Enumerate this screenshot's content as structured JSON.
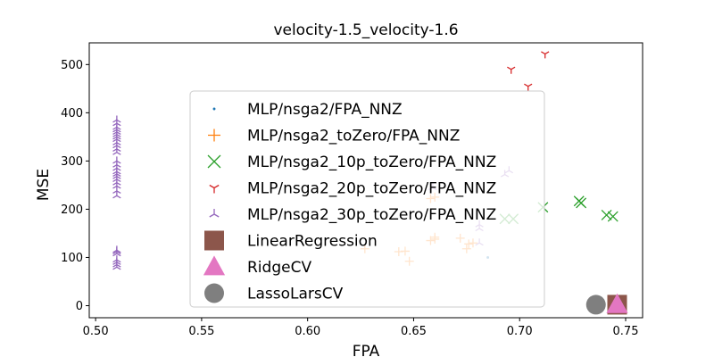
{
  "chart_data": {
    "type": "scatter",
    "title": "velocity-1.5_velocity-1.6",
    "xlabel": "FPA",
    "ylabel": "MSE",
    "xlim": [
      0.497,
      0.758
    ],
    "ylim": [
      -25,
      545
    ],
    "xticks": [
      0.5,
      0.55,
      0.6,
      0.65,
      0.7,
      0.75
    ],
    "xtick_labels": [
      "0.50",
      "0.55",
      "0.60",
      "0.65",
      "0.70",
      "0.75"
    ],
    "yticks": [
      0,
      100,
      200,
      300,
      400,
      500
    ],
    "ytick_labels": [
      "0",
      "100",
      "200",
      "300",
      "400",
      "500"
    ],
    "grid": false,
    "legend_position": "center",
    "series": [
      {
        "name": "MLP/nsga2/FPA_NNZ",
        "marker": "dot",
        "color": "#1f77b4",
        "points": [
          [
            0.685,
            100
          ]
        ]
      },
      {
        "name": "MLP/nsga2_toZero/FPA_NNZ",
        "marker": "plus",
        "color": "#ff7f0e",
        "points": [
          [
            0.627,
            118
          ],
          [
            0.643,
            112
          ],
          [
            0.646,
            113
          ],
          [
            0.648,
            92
          ],
          [
            0.658,
            135
          ],
          [
            0.66,
            142
          ],
          [
            0.66,
            138
          ],
          [
            0.672,
            140
          ],
          [
            0.675,
            118
          ],
          [
            0.676,
            128
          ],
          [
            0.678,
            130
          ],
          [
            0.658,
            222
          ],
          [
            0.66,
            225
          ]
        ]
      },
      {
        "name": "MLP/nsga2_10p_toZero/FPA_NNZ",
        "marker": "x",
        "color": "#2ca02c",
        "points": [
          [
            0.693,
            180
          ],
          [
            0.697,
            180
          ],
          [
            0.711,
            204
          ],
          [
            0.728,
            217
          ],
          [
            0.729,
            213
          ],
          [
            0.741,
            188
          ],
          [
            0.744,
            185
          ]
        ]
      },
      {
        "name": "MLP/nsga2_20p_toZero/FPA_NNZ",
        "marker": "tri_down",
        "color": "#d62728",
        "points": [
          [
            0.696,
            490
          ],
          [
            0.704,
            455
          ],
          [
            0.712,
            522
          ]
        ]
      },
      {
        "name": "MLP/nsga2_30p_toZero/FPA_NNZ",
        "marker": "tri_up",
        "color": "#9467bd",
        "points": [
          [
            0.51,
            80
          ],
          [
            0.51,
            85
          ],
          [
            0.51,
            90
          ],
          [
            0.51,
            95
          ],
          [
            0.51,
            108
          ],
          [
            0.51,
            112
          ],
          [
            0.51,
            115
          ],
          [
            0.51,
            228
          ],
          [
            0.51,
            238
          ],
          [
            0.51,
            248
          ],
          [
            0.51,
            255
          ],
          [
            0.51,
            262
          ],
          [
            0.51,
            268
          ],
          [
            0.51,
            273
          ],
          [
            0.51,
            278
          ],
          [
            0.51,
            285
          ],
          [
            0.51,
            292
          ],
          [
            0.51,
            300
          ],
          [
            0.51,
            318
          ],
          [
            0.51,
            325
          ],
          [
            0.51,
            332
          ],
          [
            0.51,
            338
          ],
          [
            0.51,
            345
          ],
          [
            0.51,
            350
          ],
          [
            0.51,
            355
          ],
          [
            0.51,
            360
          ],
          [
            0.51,
            365
          ],
          [
            0.51,
            370
          ],
          [
            0.51,
            378
          ],
          [
            0.51,
            385
          ],
          [
            0.681,
            130
          ],
          [
            0.681,
            160
          ],
          [
            0.681,
            168
          ],
          [
            0.693,
            272
          ],
          [
            0.695,
            280
          ],
          [
            0.659,
            245
          ]
        ]
      },
      {
        "name": "LinearRegression",
        "marker": "square",
        "color": "#8c564b",
        "points": [
          [
            0.746,
            2
          ]
        ]
      },
      {
        "name": "RidgeCV",
        "marker": "triangle",
        "color": "#e377c2",
        "points": [
          [
            0.746,
            2
          ]
        ]
      },
      {
        "name": "LassoLarsCV",
        "marker": "circle",
        "color": "#7f7f7f",
        "points": [
          [
            0.736,
            2
          ]
        ]
      }
    ]
  }
}
